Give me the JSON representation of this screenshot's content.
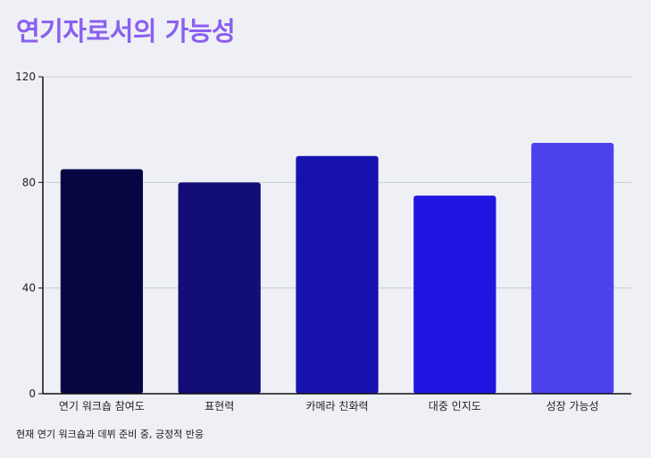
{
  "chart_data": {
    "type": "bar",
    "title": "연기자로서의 가능성",
    "categories": [
      "연기 워크숍 참여도",
      "표현력",
      "카메라 친화력",
      "대중 인지도",
      "성장 가능성"
    ],
    "values": [
      85,
      80,
      90,
      75,
      95
    ],
    "colors": [
      "#080543",
      "#120d77",
      "#1712ad",
      "#1f17e1",
      "#4b42ee"
    ],
    "ylim": [
      0,
      120
    ],
    "yticks": [
      0,
      40,
      80,
      120
    ],
    "grid": true,
    "xlabel": "",
    "ylabel": ""
  },
  "footnote": "현재 연기 워크숍과 데뷔 준비 중, 긍정적 반응",
  "colors": {
    "title": "#8a5ff0",
    "background": "#eef0f5",
    "grid": "#c9cbd3",
    "axis": "#111111"
  }
}
